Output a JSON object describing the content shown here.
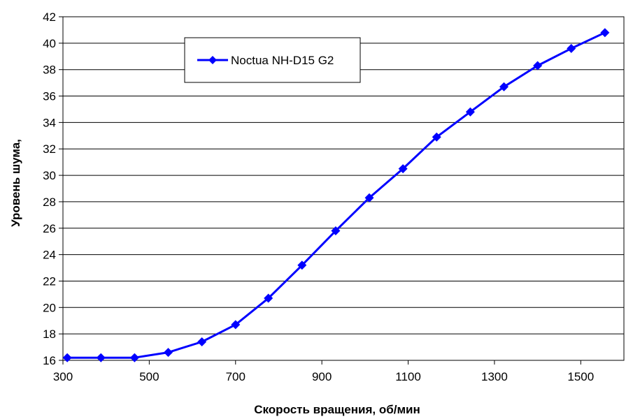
{
  "chart_data": {
    "type": "line",
    "title": "",
    "xlabel": "Скорость вращения, об/мин",
    "ylabel": "Уровень шума,",
    "xlim": [
      300,
      1600
    ],
    "ylim": [
      16,
      42
    ],
    "xticks": [
      300,
      500,
      700,
      900,
      1100,
      1300,
      1500
    ],
    "yticks": [
      16,
      18,
      20,
      22,
      24,
      26,
      28,
      30,
      32,
      34,
      36,
      38,
      40,
      42
    ],
    "grid": true,
    "legend_position": "top-center",
    "series": [
      {
        "name": "Noctua NH-D15 G2",
        "color": "#0000ff",
        "marker": "diamond",
        "x": [
          310,
          388,
          466,
          544,
          622,
          700,
          776,
          854,
          932,
          1010,
          1088,
          1166,
          1244,
          1322,
          1400,
          1478,
          1556
        ],
        "y": [
          16.2,
          16.2,
          16.2,
          16.6,
          17.4,
          18.7,
          20.7,
          23.2,
          25.8,
          28.3,
          30.5,
          32.9,
          34.8,
          36.7,
          38.3,
          39.6,
          40.8
        ]
      }
    ]
  }
}
